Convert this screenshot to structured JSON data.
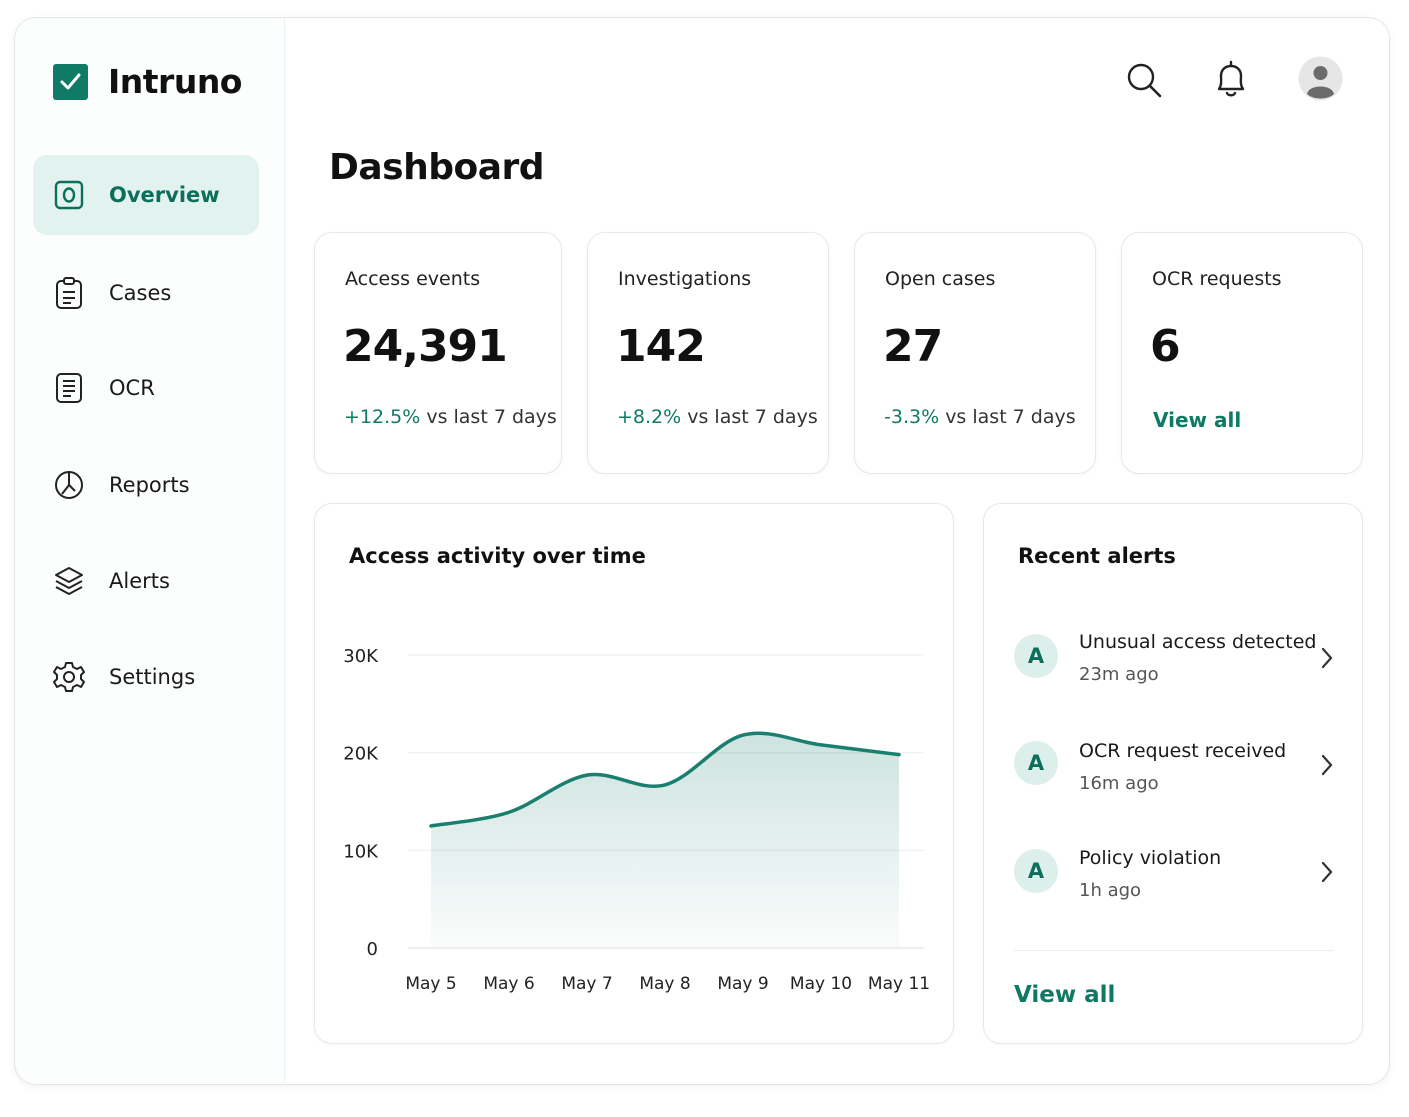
{
  "brand": "Intruno",
  "nav": [
    "Overview",
    "Cases",
    "OCR",
    "Reports",
    "Alerts",
    "Settings"
  ],
  "page_title": "Dashboard",
  "stats": [
    {
      "label": "Access events",
      "value": "24,391",
      "change": "+12.5%",
      "change_note": "vs last 7 days"
    },
    {
      "label": "Investigations",
      "value": "142",
      "change": "+8.2%",
      "change_note": "vs last 7 days"
    },
    {
      "label": "Open cases",
      "value": "27",
      "change": "-3.3%",
      "change_note": "vs last 7 days"
    },
    {
      "label": "OCR requests",
      "value": "6",
      "link": "View all"
    }
  ],
  "chart_data": {
    "type": "line",
    "title": "Access activity over time",
    "categories": [
      "May 5",
      "May 6",
      "May 7",
      "May 8",
      "May 9",
      "May 10",
      "May 11"
    ],
    "values": [
      12500,
      13900,
      17700,
      16700,
      21800,
      20800,
      19800
    ],
    "color": "#1a7f6e",
    "ylim": [
      0,
      30000
    ],
    "yticks": [
      0,
      {
        "value": 10000,
        "label": "10K"
      },
      {
        "value": 20000,
        "label": "20K"
      },
      {
        "value": 30000,
        "label": "30K"
      }
    ],
    "grid": true
  },
  "alerts": {
    "title": "Recent alerts",
    "items": [
      {
        "avatar": "A",
        "title": "Unusual access detected",
        "time": "23m ago"
      },
      {
        "avatar": "A",
        "title": "OCR request received",
        "time": "16m ago"
      },
      {
        "avatar": "A",
        "title": "Policy violation",
        "time": "1h ago"
      }
    ],
    "link": "View all"
  }
}
